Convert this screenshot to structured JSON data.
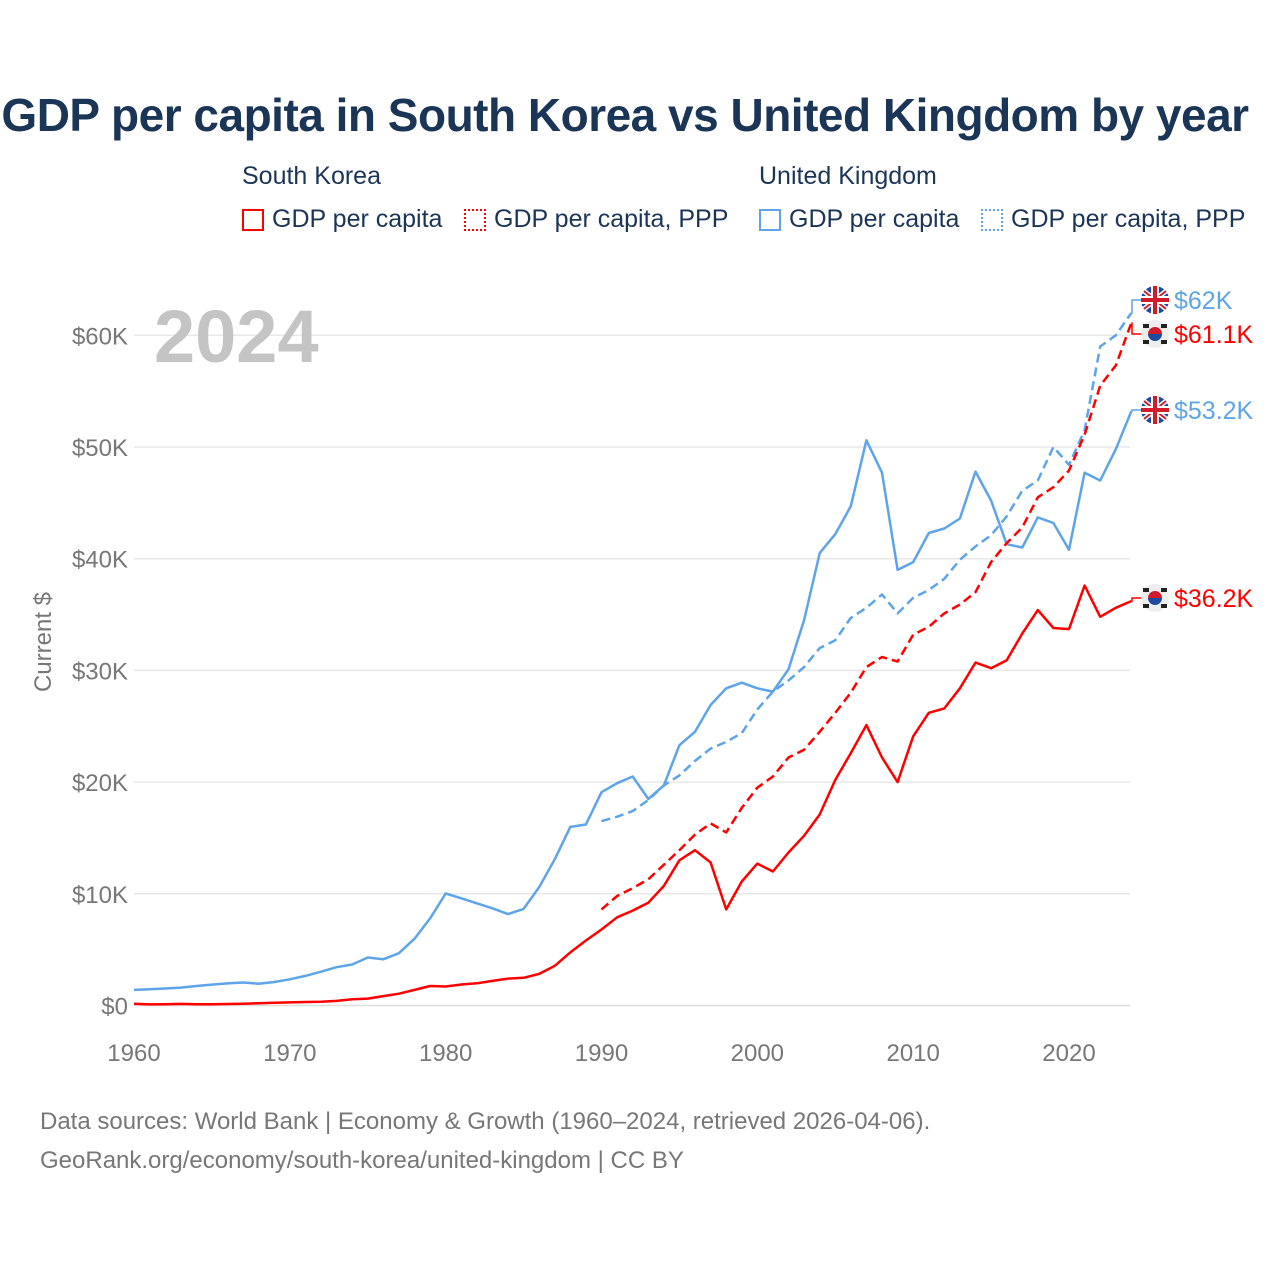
{
  "title": "GDP per capita in South Korea vs United Kingdom by year",
  "legend": {
    "groups": [
      {
        "name": "South Korea",
        "items": [
          "GDP per capita",
          "GDP per capita, PPP"
        ]
      },
      {
        "name": "United Kingdom",
        "items": [
          "GDP per capita",
          "GDP per capita, PPP"
        ]
      }
    ]
  },
  "year_watermark": "2024",
  "sources": [
    "Data sources: World Bank | Economy & Growth (1960–2024, retrieved 2026-04-06).",
    "GeoRank.org/economy/south-korea/united-kingdom | CC BY"
  ],
  "chart_data": {
    "type": "line",
    "title": "GDP per capita in South Korea vs United Kingdom by year",
    "xlabel": "",
    "ylabel": "Current $",
    "xlim": [
      1960,
      2024
    ],
    "ylim": [
      0,
      65000
    ],
    "x_ticks": [
      1960,
      1970,
      1980,
      1990,
      2000,
      2010,
      2020
    ],
    "x_tick_labels": [
      "1960",
      "1970",
      "1980",
      "1990",
      "2000",
      "2010",
      "2020"
    ],
    "y_ticks": [
      0,
      10000,
      20000,
      30000,
      40000,
      50000,
      60000
    ],
    "y_tick_labels": [
      "$0",
      "$10K",
      "$20K",
      "$30K",
      "$40K",
      "$50K",
      "$60K"
    ],
    "grid": true,
    "series": [
      {
        "name": "United Kingdom GDP per capita",
        "country": "uk",
        "dash": false,
        "color": "#5ea4e8",
        "end_label": "$53.2K",
        "start": 1960,
        "values": [
          1.4,
          1.45,
          1.52,
          1.6,
          1.75,
          1.87,
          1.98,
          2.06,
          1.95,
          2.1,
          2.35,
          2.65,
          3.03,
          3.43,
          3.67,
          4.3,
          4.14,
          4.68,
          5.98,
          7.8,
          10.03,
          9.6,
          9.15,
          8.7,
          8.18,
          8.65,
          10.6,
          13.1,
          15.99,
          16.2,
          19.1,
          19.9,
          20.5,
          18.5,
          19.7,
          23.3,
          24.5,
          26.9,
          28.4,
          28.9,
          28.4,
          28.1,
          30.1,
          34.5,
          40.5,
          42.2,
          44.7,
          50.6,
          47.7,
          39.0,
          39.7,
          42.3,
          42.7,
          43.6,
          47.8,
          45.2,
          41.3,
          41.0,
          43.7,
          43.2,
          40.8,
          47.7,
          47.0,
          49.8,
          53.2
        ]
      },
      {
        "name": "United Kingdom GDP per capita, PPP",
        "country": "uk",
        "dash": true,
        "color": "#5ea4e8",
        "end_label": "$62K",
        "start": 1990,
        "values": [
          16.5,
          16.9,
          17.4,
          18.4,
          19.7,
          20.6,
          21.9,
          23.0,
          23.6,
          24.4,
          26.5,
          28.1,
          29.1,
          30.3,
          32.0,
          32.7,
          34.7,
          35.6,
          36.8,
          35.1,
          36.5,
          37.2,
          38.2,
          39.9,
          41.1,
          42.1,
          43.8,
          46.1,
          47.0,
          50.0,
          48.4,
          51.5,
          59.0,
          60.0,
          62.0
        ]
      },
      {
        "name": "South Korea GDP per capita",
        "country": "kr",
        "dash": false,
        "color": "#ff0000",
        "end_label": "$36.2K",
        "start": 1960,
        "values": [
          0.16,
          0.1,
          0.11,
          0.14,
          0.12,
          0.11,
          0.13,
          0.16,
          0.2,
          0.24,
          0.28,
          0.31,
          0.33,
          0.41,
          0.56,
          0.62,
          0.84,
          1.06,
          1.4,
          1.75,
          1.7,
          1.88,
          1.99,
          2.2,
          2.41,
          2.48,
          2.83,
          3.55,
          4.75,
          5.82,
          6.8,
          7.9,
          8.5,
          9.2,
          10.7,
          13.0,
          13.9,
          12.8,
          8.6,
          11.1,
          12.7,
          12.0,
          13.7,
          15.2,
          17.1,
          20.2,
          22.6,
          25.1,
          22.2,
          20.0,
          24.1,
          26.2,
          26.6,
          28.4,
          30.7,
          30.2,
          30.9,
          33.3,
          35.4,
          33.8,
          33.7,
          37.6,
          34.8,
          35.6,
          36.2
        ]
      },
      {
        "name": "South Korea GDP per capita, PPP",
        "country": "kr",
        "dash": true,
        "color": "#ff0000",
        "end_label": "$61.1K",
        "start": 1990,
        "values": [
          8.6,
          9.8,
          10.5,
          11.3,
          12.6,
          13.9,
          15.3,
          16.3,
          15.5,
          17.7,
          19.5,
          20.5,
          22.2,
          22.9,
          24.5,
          26.2,
          28.0,
          30.3,
          31.2,
          30.8,
          33.2,
          33.9,
          35.1,
          35.9,
          37.0,
          39.7,
          41.4,
          42.8,
          45.5,
          46.4,
          47.9,
          51.1,
          55.5,
          57.3,
          61.1
        ]
      }
    ],
    "value_units": "thousands of current US$"
  }
}
